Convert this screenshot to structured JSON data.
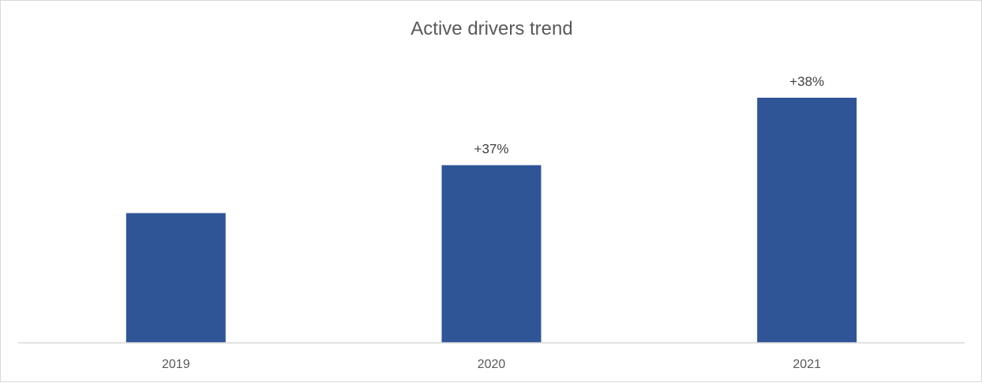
{
  "chart_data": {
    "type": "bar",
    "title": "Active drivers trend",
    "xlabel": "",
    "ylabel": "",
    "categories": [
      "2019",
      "2020",
      "2021"
    ],
    "values": [
      100,
      137,
      189
    ],
    "data_labels": [
      "",
      "+37%",
      "+38%"
    ],
    "ylim": [
      0,
      189
    ],
    "grid": false,
    "legend": "none",
    "bar_color": "#2F5597",
    "axis_color": "#d9d9d9"
  }
}
